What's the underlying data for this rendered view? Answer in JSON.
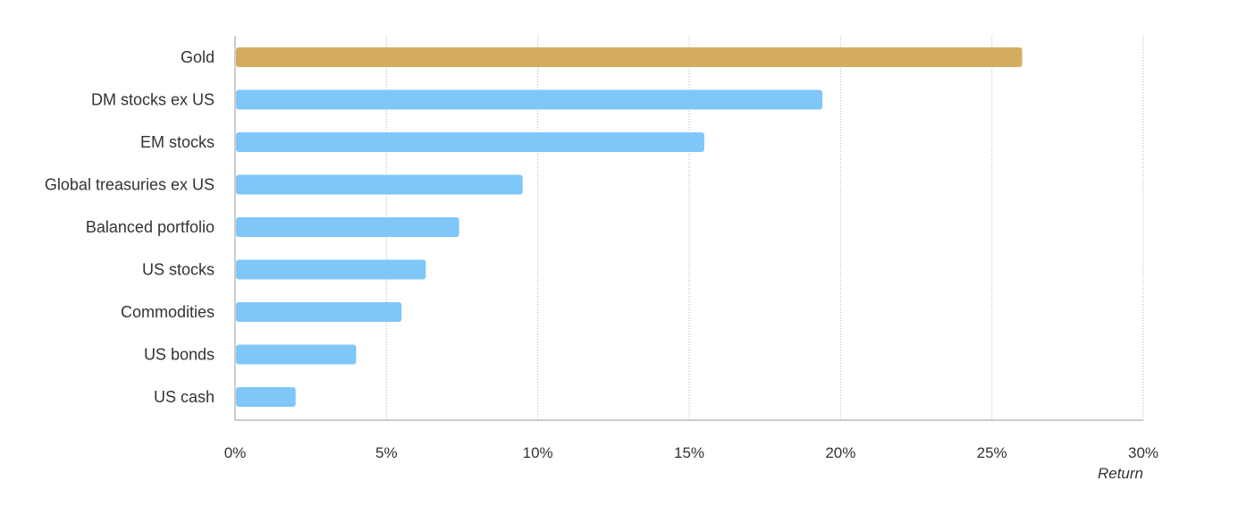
{
  "chart_data": {
    "type": "bar",
    "orientation": "horizontal",
    "categories": [
      "Gold",
      "DM stocks ex US",
      "EM stocks",
      "Global treasuries ex US",
      "Balanced portfolio",
      "US stocks",
      "Commodities",
      "US bonds",
      "US cash"
    ],
    "values": [
      26.0,
      19.4,
      15.5,
      9.5,
      7.4,
      6.3,
      5.5,
      4.0,
      2.0
    ],
    "highlight_category": "Gold",
    "colors": {
      "highlight": "#D4AC5F",
      "default": "#7FC7F9",
      "grid": "#b8b8b8",
      "axis": "#999999",
      "text": "#333333"
    },
    "xlim": [
      0,
      30
    ],
    "xticks": [
      0,
      5,
      10,
      15,
      20,
      25,
      30
    ],
    "xtick_labels": [
      "0%",
      "5%",
      "10%",
      "15%",
      "20%",
      "25%",
      "30%"
    ],
    "xlabel": "Return",
    "grid": "vertical-dotted",
    "legend": "none"
  }
}
